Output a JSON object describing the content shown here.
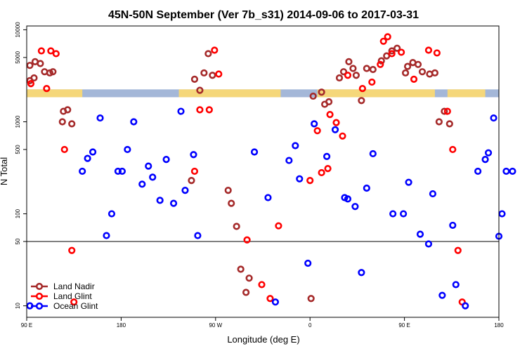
{
  "chart_data": {
    "type": "scatter",
    "title": "45N-50N September (Ver 7b_s31)   2014-09-06 to 2017-03-31",
    "xlabel": "Longitude (deg E)",
    "ylabel": "N Total",
    "x_ticks": [
      {
        "value": 90,
        "label": "90 E"
      },
      {
        "value": 180,
        "label": "180"
      },
      {
        "value": 270,
        "label": "90 W"
      },
      {
        "value": 360,
        "label": "0"
      },
      {
        "value": 450,
        "label": "90 E"
      },
      {
        "value": 540,
        "label": "180"
      }
    ],
    "xlim": [
      90,
      540
    ],
    "y_scale": "log",
    "y_ticks": [
      {
        "value": 10,
        "label": "10"
      },
      {
        "value": 50,
        "label": "50"
      },
      {
        "value": 100,
        "label": "100"
      },
      {
        "value": 500,
        "label": "500"
      },
      {
        "value": 1000,
        "label": "1000"
      },
      {
        "value": 5000,
        "label": "5000"
      },
      {
        "value": 10000,
        "label": "10000"
      }
    ],
    "ylim": [
      7.5,
      11000
    ],
    "threshold_line": 50,
    "surface_band": {
      "ymin": 1850,
      "ymax": 2250,
      "land_color": "#f5d77a",
      "ocean_color": "#a4b7d8",
      "land_ranges": [
        [
          90,
          143
        ],
        [
          235,
          332
        ],
        [
          367,
          479
        ],
        [
          491,
          527
        ]
      ]
    },
    "legend_position": "bottom-left",
    "series": [
      {
        "name": "Land Nadir",
        "color": "#a52a2a",
        "points": [
          [
            93,
            2800
          ],
          [
            93,
            4100
          ],
          [
            97,
            3000
          ],
          [
            98,
            4500
          ],
          [
            103,
            4300
          ],
          [
            107,
            3500
          ],
          [
            112,
            3400
          ],
          [
            115,
            3500
          ],
          [
            124,
            1000
          ],
          [
            125,
            1300
          ],
          [
            129,
            1350
          ],
          [
            133,
            950
          ],
          [
            247,
            230
          ],
          [
            250,
            2900
          ],
          [
            255,
            2200
          ],
          [
            259,
            3400
          ],
          [
            263,
            5500
          ],
          [
            267,
            3200
          ],
          [
            282,
            180
          ],
          [
            285,
            130
          ],
          [
            290,
            73
          ],
          [
            294,
            25
          ],
          [
            299,
            14
          ],
          [
            302,
            20
          ],
          [
            361,
            12
          ],
          [
            363,
            1900
          ],
          [
            371,
            2100
          ],
          [
            374,
            1550
          ],
          [
            378,
            1650
          ],
          [
            388,
            3000
          ],
          [
            392,
            3500
          ],
          [
            397,
            4500
          ],
          [
            401,
            3800
          ],
          [
            404,
            3200
          ],
          [
            409,
            1700
          ],
          [
            414,
            3800
          ],
          [
            420,
            3700
          ],
          [
            428,
            4600
          ],
          [
            433,
            5200
          ],
          [
            438,
            5900
          ],
          [
            443,
            6300
          ],
          [
            451,
            3400
          ],
          [
            453,
            4000
          ],
          [
            458,
            4400
          ],
          [
            463,
            4200
          ],
          [
            467,
            3500
          ],
          [
            474,
            3300
          ],
          [
            479,
            3400
          ],
          [
            483,
            1000
          ],
          [
            488,
            1300
          ],
          [
            493,
            950
          ]
        ]
      },
      {
        "name": "Land Glint",
        "color": "#ff0000",
        "points": [
          [
            94,
            2600
          ],
          [
            104,
            5900
          ],
          [
            109,
            2300
          ],
          [
            113,
            5900
          ],
          [
            118,
            5500
          ],
          [
            126,
            500
          ],
          [
            133,
            40
          ],
          [
            135,
            11
          ],
          [
            250,
            290
          ],
          [
            255,
            1350
          ],
          [
            264,
            1350
          ],
          [
            269,
            6000
          ],
          [
            273,
            3300
          ],
          [
            300,
            52
          ],
          [
            314,
            17
          ],
          [
            322,
            12
          ],
          [
            330,
            74
          ],
          [
            360,
            230
          ],
          [
            367,
            800
          ],
          [
            371,
            280
          ],
          [
            377,
            310
          ],
          [
            379,
            1200
          ],
          [
            385,
            980
          ],
          [
            391,
            700
          ],
          [
            396,
            3200
          ],
          [
            410,
            2300
          ],
          [
            419,
            2700
          ],
          [
            427,
            4200
          ],
          [
            430,
            7500
          ],
          [
            434,
            8400
          ],
          [
            438,
            5500
          ],
          [
            447,
            5700
          ],
          [
            459,
            2900
          ],
          [
            473,
            6000
          ],
          [
            481,
            5600
          ],
          [
            491,
            1300
          ],
          [
            496,
            500
          ],
          [
            501,
            40
          ],
          [
            505,
            11
          ]
        ]
      },
      {
        "name": "Ocean Glint",
        "color": "#0000ff",
        "points": [
          [
            93,
            10
          ],
          [
            143,
            290
          ],
          [
            148,
            400
          ],
          [
            153,
            470
          ],
          [
            160,
            1100
          ],
          [
            166,
            58
          ],
          [
            171,
            100
          ],
          [
            177,
            290
          ],
          [
            181,
            290
          ],
          [
            186,
            500
          ],
          [
            192,
            1000
          ],
          [
            200,
            210
          ],
          [
            206,
            330
          ],
          [
            210,
            250
          ],
          [
            217,
            140
          ],
          [
            223,
            390
          ],
          [
            230,
            130
          ],
          [
            237,
            1300
          ],
          [
            241,
            180
          ],
          [
            249,
            440
          ],
          [
            253,
            58
          ],
          [
            307,
            470
          ],
          [
            320,
            150
          ],
          [
            327,
            11
          ],
          [
            340,
            380
          ],
          [
            346,
            550
          ],
          [
            350,
            240
          ],
          [
            358,
            29
          ],
          [
            364,
            950
          ],
          [
            376,
            420
          ],
          [
            384,
            820
          ],
          [
            393,
            150
          ],
          [
            396,
            145
          ],
          [
            403,
            120
          ],
          [
            409,
            23
          ],
          [
            414,
            190
          ],
          [
            420,
            450
          ],
          [
            439,
            100
          ],
          [
            449,
            100
          ],
          [
            454,
            220
          ],
          [
            465,
            60
          ],
          [
            473,
            47
          ],
          [
            477,
            165
          ],
          [
            486,
            13
          ],
          [
            496,
            75
          ],
          [
            499,
            17
          ],
          [
            508,
            10
          ],
          [
            520,
            290
          ],
          [
            527,
            390
          ],
          [
            530,
            460
          ],
          [
            535,
            1100
          ],
          [
            540,
            57
          ],
          [
            543,
            100
          ],
          [
            547,
            290
          ],
          [
            553,
            290
          ]
        ]
      }
    ]
  }
}
